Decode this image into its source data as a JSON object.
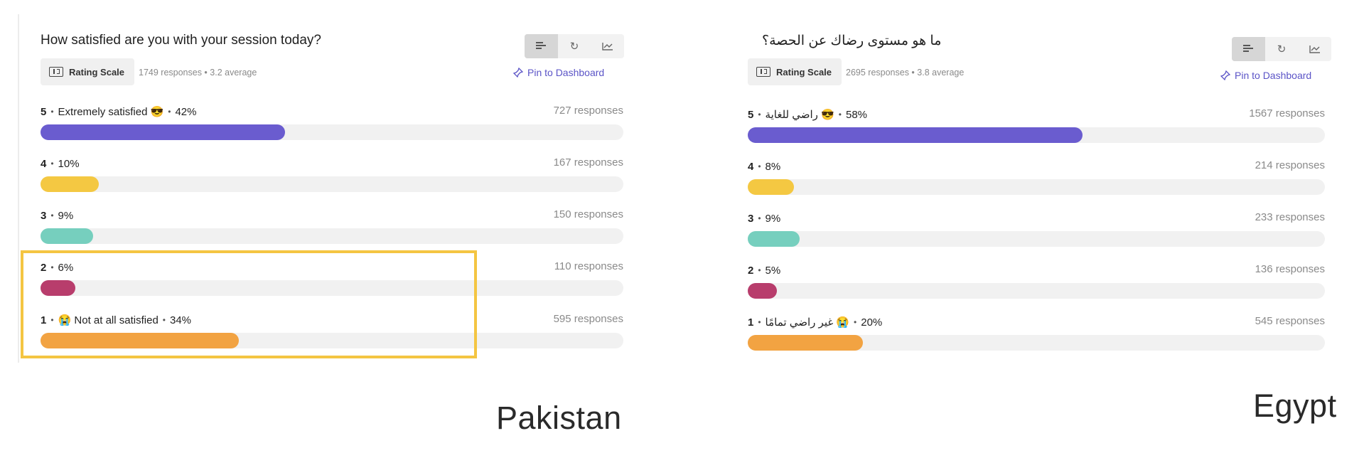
{
  "chart_data": [
    {
      "type": "bar",
      "country": "Pakistan",
      "title": "How satisfied are you with your session today?",
      "question_type": "Rating Scale",
      "summary": "1749 responses • 3.2 average",
      "pin_label": "Pin to Dashboard",
      "rows": [
        {
          "level": "5",
          "text": "Extremely satisfied 😎",
          "pct": "42%",
          "value": 42,
          "count": "727 responses",
          "color": "#6a5ccf"
        },
        {
          "level": "4",
          "text": "",
          "pct": "10%",
          "value": 10,
          "count": "167 responses",
          "color": "#f4c842"
        },
        {
          "level": "3",
          "text": "",
          "pct": "9%",
          "value": 9,
          "count": "150 responses",
          "color": "#76cfbe"
        },
        {
          "level": "2",
          "text": "",
          "pct": "6%",
          "value": 6,
          "count": "110 responses",
          "color": "#b83d6c"
        },
        {
          "level": "1",
          "text": "😭 Not at all satisfied",
          "pct": "34%",
          "value": 34,
          "count": "595 responses",
          "color": "#f2a342"
        }
      ]
    },
    {
      "type": "bar",
      "country": "Egypt",
      "title": "ما هو مستوى رضاك عن الحصة؟",
      "question_type": "Rating Scale",
      "summary": "2695 responses • 3.8 average",
      "pin_label": "Pin to Dashboard",
      "rows": [
        {
          "level": "5",
          "text": "😎 راضي للغاية",
          "pct": "58%",
          "value": 58,
          "count": "1567 responses",
          "color": "#6a5ccf"
        },
        {
          "level": "4",
          "text": "",
          "pct": "8%",
          "value": 8,
          "count": "214 responses",
          "color": "#f4c842"
        },
        {
          "level": "3",
          "text": "",
          "pct": "9%",
          "value": 9,
          "count": "233 responses",
          "color": "#76cfbe"
        },
        {
          "level": "2",
          "text": "",
          "pct": "5%",
          "value": 5,
          "count": "136 responses",
          "color": "#b83d6c"
        },
        {
          "level": "1",
          "text": "😭 غير راضي تمامًا",
          "pct": "20%",
          "value": 20,
          "count": "545 responses",
          "color": "#f2a342"
        }
      ]
    }
  ],
  "view_toggle": [
    "bar-chart-icon",
    "donut-chart-icon",
    "line-chart-icon"
  ],
  "highlight_color": "#f4c542"
}
